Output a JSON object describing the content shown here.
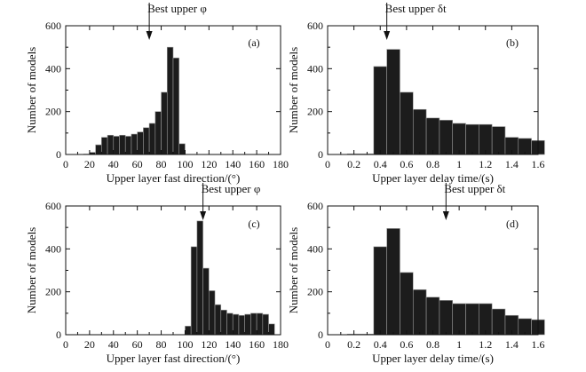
{
  "chart_data": [
    {
      "type": "bar",
      "panel": "(a)",
      "annotation": "Best upper φ",
      "annotation_x": 70,
      "xlabel": "Upper layer fast direction/(°)",
      "ylabel": "Number of models",
      "xlim": [
        0,
        180
      ],
      "ylim": [
        0,
        600
      ],
      "xticks": [
        "0",
        "20",
        "40",
        "60",
        "80",
        "100",
        "120",
        "140",
        "160",
        "180"
      ],
      "xtick_values": [
        0,
        20,
        40,
        60,
        80,
        100,
        120,
        140,
        160,
        180
      ],
      "yticks": [
        "0",
        "200",
        "400",
        "600"
      ],
      "ytick_values": [
        0,
        200,
        400,
        600
      ],
      "bin_width": 5,
      "bin_starts": [
        15,
        20,
        25,
        30,
        35,
        40,
        45,
        50,
        55,
        60,
        65,
        70,
        75,
        80,
        85,
        90,
        95
      ],
      "values": [
        2,
        10,
        45,
        80,
        90,
        85,
        90,
        85,
        95,
        105,
        125,
        145,
        200,
        290,
        500,
        450,
        50
      ]
    },
    {
      "type": "bar",
      "panel": "(b)",
      "annotation": "Best upper δt",
      "annotation_x": 0.45,
      "xlabel": "Upper layer delay time/(s)",
      "ylabel": "Number of models",
      "xlim": [
        0,
        1.6
      ],
      "ylim": [
        0,
        600
      ],
      "xticks": [
        "0",
        "0.2",
        "0.4",
        "0.6",
        "0.8",
        "1",
        "1.2",
        "1.4",
        "1.6"
      ],
      "xtick_values": [
        0,
        0.2,
        0.4,
        0.6,
        0.8,
        1,
        1.2,
        1.4,
        1.6
      ],
      "yticks": [
        "0",
        "200",
        "400",
        "600"
      ],
      "ytick_values": [
        0,
        200,
        400,
        600
      ],
      "bin_width": 0.1,
      "bin_starts": [
        0.15,
        0.25,
        0.35,
        0.45,
        0.55,
        0.65,
        0.75,
        0.85,
        0.95,
        1.05,
        1.15,
        1.25,
        1.35,
        1.45,
        1.55
      ],
      "values": [
        3,
        3,
        410,
        490,
        290,
        210,
        170,
        160,
        145,
        140,
        140,
        130,
        80,
        75,
        65
      ]
    },
    {
      "type": "bar",
      "panel": "(c)",
      "annotation": "Best upper φ",
      "annotation_x": 115,
      "xlabel": "Upper layer fast direction/(°)",
      "ylabel": "Number of models",
      "xlim": [
        0,
        180
      ],
      "ylim": [
        0,
        600
      ],
      "xticks": [
        "0",
        "20",
        "40",
        "60",
        "80",
        "100",
        "120",
        "140",
        "160",
        "180"
      ],
      "xtick_values": [
        0,
        20,
        40,
        60,
        80,
        100,
        120,
        140,
        160,
        180
      ],
      "yticks": [
        "0",
        "200",
        "400",
        "600"
      ],
      "ytick_values": [
        0,
        200,
        400,
        600
      ],
      "bin_width": 5,
      "bin_starts": [
        100,
        105,
        110,
        115,
        120,
        125,
        130,
        135,
        140,
        145,
        150,
        155,
        160,
        165,
        170
      ],
      "values": [
        40,
        410,
        530,
        310,
        205,
        140,
        115,
        100,
        95,
        90,
        95,
        100,
        100,
        95,
        50
      ]
    },
    {
      "type": "bar",
      "panel": "(d)",
      "annotation": "Best upper δt",
      "annotation_x": 0.9,
      "xlabel": "Upper layer delay time/(s)",
      "ylabel": "Number of models",
      "xlim": [
        0,
        1.6
      ],
      "ylim": [
        0,
        600
      ],
      "xticks": [
        "0",
        "0.2",
        "0.4",
        "0.6",
        "0.8",
        "1",
        "1.2",
        "1.4",
        "1.6"
      ],
      "xtick_values": [
        0,
        0.2,
        0.4,
        0.6,
        0.8,
        1,
        1.2,
        1.4,
        1.6
      ],
      "yticks": [
        "0",
        "200",
        "400",
        "600"
      ],
      "ytick_values": [
        0,
        200,
        400,
        600
      ],
      "bin_width": 0.1,
      "bin_starts": [
        0.15,
        0.25,
        0.35,
        0.45,
        0.55,
        0.65,
        0.75,
        0.85,
        0.95,
        1.05,
        1.15,
        1.25,
        1.35,
        1.45,
        1.55
      ],
      "values": [
        3,
        3,
        410,
        495,
        290,
        210,
        175,
        160,
        145,
        145,
        145,
        120,
        90,
        75,
        70
      ]
    }
  ]
}
